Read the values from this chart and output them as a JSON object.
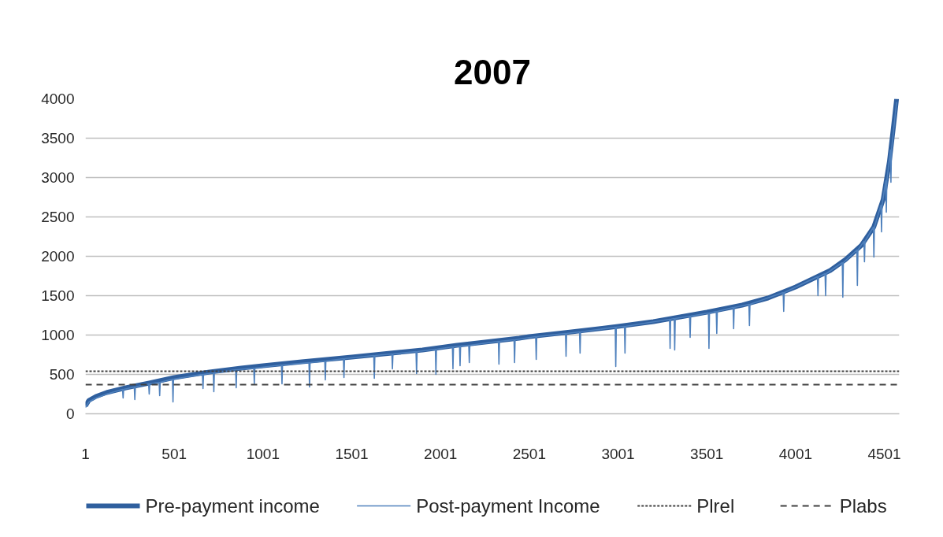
{
  "chart_data": {
    "type": "line",
    "title": "2007",
    "xlim": [
      1,
      4585
    ],
    "xticks": [
      1,
      501,
      1001,
      1501,
      2001,
      2501,
      3001,
      3501,
      4001,
      4501
    ],
    "ylim": [
      0,
      4000
    ],
    "yticks": [
      0,
      500,
      1000,
      1500,
      2000,
      2500,
      3000,
      3500,
      4000
    ],
    "grid": "y",
    "legend": "bottom",
    "series": [
      {
        "name": "Pre-payment income",
        "color": "#2f5f9e",
        "x": [
          1,
          20,
          60,
          120,
          228,
          360,
          501,
          700,
          878,
          1001,
          1219,
          1501,
          1899,
          2094,
          2173,
          2444,
          2501,
          2700,
          3001,
          3200,
          3501,
          3700,
          3845,
          4001,
          4196,
          4283,
          4372,
          4441,
          4494,
          4529,
          4550,
          4570
        ],
        "values": [
          100,
          170,
          220,
          270,
          330,
          390,
          460,
          530,
          580,
          610,
          660,
          720,
          810,
          870,
          890,
          960,
          980,
          1030,
          1110,
          1170,
          1290,
          1380,
          1470,
          1610,
          1820,
          1960,
          2140,
          2370,
          2720,
          3200,
          3600,
          4000
        ]
      },
      {
        "name": "Post-payment Income",
        "color": "#4f81bd",
        "x": [
          1,
          20,
          60,
          120,
          210,
          213,
          216,
          276,
          279,
          282,
          357,
          360,
          363,
          416,
          419,
          422,
          491,
          494,
          497,
          660,
          663,
          666,
          721,
          724,
          727,
          847,
          850,
          853,
          949,
          952,
          955,
          1105,
          1108,
          1111,
          1260,
          1263,
          1266,
          1349,
          1352,
          1355,
          1454,
          1457,
          1460,
          1625,
          1628,
          1631,
          1727,
          1730,
          1733,
          1863,
          1866,
          1869,
          1972,
          1975,
          1978,
          2068,
          2071,
          2074,
          2108,
          2111,
          2114,
          2160,
          2163,
          2166,
          2327,
          2330,
          2333,
          2415,
          2418,
          2421,
          2537,
          2540,
          2543,
          2705,
          2708,
          2711,
          2784,
          2787,
          2790,
          2985,
          2988,
          2991,
          3037,
          3040,
          3043,
          3291,
          3294,
          3297,
          3317,
          3320,
          3323,
          3404,
          3407,
          3410,
          3510,
          3513,
          3516,
          3554,
          3557,
          3560,
          3649,
          3652,
          3655,
          3738,
          3741,
          3744,
          3931,
          3934,
          3937,
          4124,
          4127,
          4130,
          4167,
          4170,
          4173,
          4264,
          4267,
          4270,
          4346,
          4349,
          4352,
          4386,
          4389,
          4392,
          4439,
          4442,
          4445,
          4482,
          4485,
          4488,
          4509,
          4512,
          4515,
          4535,
          4538,
          4541,
          4570
        ],
        "values": [
          80,
          150,
          200,
          250,
          310,
          200,
          310,
          340,
          180,
          340,
          380,
          250,
          380,
          400,
          230,
          400,
          440,
          150,
          440,
          500,
          320,
          500,
          520,
          280,
          520,
          560,
          330,
          560,
          580,
          380,
          580,
          620,
          380,
          620,
          650,
          340,
          650,
          670,
          430,
          670,
          700,
          460,
          700,
          740,
          450,
          740,
          760,
          570,
          760,
          790,
          510,
          790,
          820,
          500,
          820,
          850,
          570,
          850,
          860,
          610,
          860,
          870,
          650,
          870,
          920,
          630,
          920,
          940,
          650,
          940,
          980,
          690,
          980,
          1020,
          730,
          1020,
          1040,
          770,
          1040,
          1100,
          600,
          1100,
          1110,
          770,
          1110,
          1200,
          830,
          1200,
          1210,
          810,
          1210,
          1240,
          970,
          1240,
          1280,
          830,
          1280,
          1300,
          1020,
          1300,
          1350,
          1080,
          1350,
          1390,
          1120,
          1390,
          1540,
          1300,
          1540,
          1740,
          1500,
          1740,
          1780,
          1500,
          1780,
          1920,
          1480,
          1920,
          2080,
          1630,
          2080,
          2190,
          1930,
          2190,
          2370,
          1990,
          2370,
          2650,
          2310,
          2650,
          2960,
          2560,
          2960,
          3350,
          2940,
          3350,
          3960
        ]
      }
    ],
    "ref_lines": [
      {
        "axis": "y",
        "value": 540,
        "label": "Plrel",
        "color": "#404040",
        "line_style": "dotted"
      },
      {
        "axis": "y",
        "value": 370,
        "label": "Plabs",
        "color": "#404040",
        "line_style": "dashed"
      }
    ]
  }
}
